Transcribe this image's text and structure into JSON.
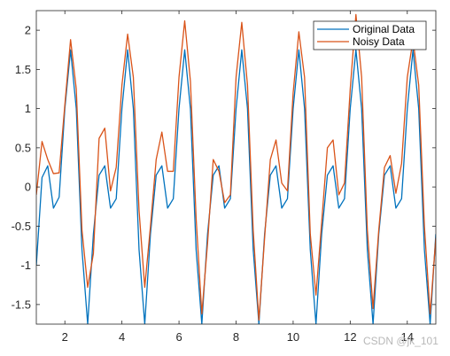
{
  "chart_data": {
    "type": "line",
    "title": "",
    "xlabel": "",
    "ylabel": "",
    "xlim": [
      1,
      15
    ],
    "ylim": [
      -1.75,
      2.25
    ],
    "xticks": [
      2,
      4,
      6,
      8,
      10,
      12,
      14
    ],
    "yticks": [
      -1.5,
      -1,
      -0.5,
      0,
      0.5,
      1,
      1.5,
      2
    ],
    "ytick_labels": [
      "-1.5",
      "-1",
      "-0.5",
      "0",
      "0.5",
      "1",
      "1.5",
      "2"
    ],
    "grid": false,
    "legend_position": "top-right",
    "series": [
      {
        "name": "Original Data",
        "color": "#0072BD",
        "x": [
          1,
          1.2,
          1.4,
          1.6,
          1.8,
          2,
          2.2,
          2.4,
          2.6,
          2.8,
          3,
          3.2,
          3.4,
          3.6,
          3.8,
          4,
          4.2,
          4.4,
          4.6,
          4.8,
          5,
          5.2,
          5.4,
          5.6,
          5.8,
          6,
          6.2,
          6.4,
          6.6,
          6.8,
          7,
          7.2,
          7.4,
          7.6,
          7.8,
          8,
          8.2,
          8.4,
          8.6,
          8.8,
          9,
          9.2,
          9.4,
          9.6,
          9.8,
          10,
          10.2,
          10.4,
          10.6,
          10.8,
          11,
          11.2,
          11.4,
          11.6,
          11.8,
          12,
          12.2,
          12.4,
          12.6,
          12.8,
          13,
          13.2,
          13.4,
          13.6,
          13.8,
          14,
          14.2,
          14.4,
          14.6,
          14.8,
          15
        ],
        "values": [
          -1.0,
          0.12,
          0.27,
          -0.27,
          -0.13,
          1.0,
          1.75,
          1.0,
          -0.8,
          -1.75,
          -0.6,
          0.15,
          0.27,
          -0.27,
          -0.15,
          1.0,
          1.75,
          1.0,
          -0.8,
          -1.75,
          -0.6,
          0.15,
          0.27,
          -0.27,
          -0.15,
          1.0,
          1.75,
          1.0,
          -0.8,
          -1.75,
          -0.6,
          0.15,
          0.27,
          -0.27,
          -0.15,
          1.0,
          1.75,
          1.0,
          -0.8,
          -1.75,
          -0.6,
          0.15,
          0.27,
          -0.27,
          -0.15,
          1.0,
          1.75,
          1.0,
          -0.8,
          -1.75,
          -0.6,
          0.15,
          0.27,
          -0.27,
          -0.15,
          1.0,
          1.75,
          1.0,
          -0.8,
          -1.75,
          -0.6,
          0.15,
          0.27,
          -0.27,
          -0.15,
          1.0,
          1.75,
          1.0,
          -0.8,
          -1.75,
          -0.6
        ]
      },
      {
        "name": "Noisy Data",
        "color": "#D95319",
        "x": [
          1,
          1.2,
          1.4,
          1.6,
          1.8,
          2,
          2.2,
          2.4,
          2.6,
          2.8,
          3,
          3.2,
          3.4,
          3.6,
          3.8,
          4,
          4.2,
          4.4,
          4.6,
          4.8,
          5,
          5.2,
          5.4,
          5.6,
          5.8,
          6,
          6.2,
          6.4,
          6.6,
          6.8,
          7,
          7.2,
          7.4,
          7.6,
          7.8,
          8,
          8.2,
          8.4,
          8.6,
          8.8,
          9,
          9.2,
          9.4,
          9.6,
          9.8,
          10,
          10.2,
          10.4,
          10.6,
          10.8,
          11,
          11.2,
          11.4,
          11.6,
          11.8,
          12,
          12.2,
          12.4,
          12.6,
          12.8,
          13,
          13.2,
          13.4,
          13.6,
          13.8,
          14,
          14.2,
          14.4,
          14.6,
          14.8,
          15
        ],
        "values": [
          -0.1,
          0.58,
          0.35,
          0.17,
          0.18,
          1.05,
          1.88,
          1.25,
          -0.55,
          -1.28,
          -0.85,
          0.62,
          0.75,
          -0.05,
          0.25,
          1.3,
          1.95,
          1.4,
          -0.3,
          -1.28,
          -0.5,
          0.35,
          0.7,
          0.2,
          0.2,
          1.4,
          2.12,
          1.35,
          -0.4,
          -1.62,
          -0.72,
          0.35,
          0.2,
          -0.2,
          -0.1,
          1.4,
          2.1,
          1.3,
          -0.55,
          -1.7,
          -0.65,
          0.35,
          0.6,
          0.05,
          -0.05,
          1.2,
          1.98,
          1.4,
          -0.6,
          -1.38,
          -0.45,
          0.5,
          0.6,
          -0.1,
          0.05,
          1.25,
          2.2,
          1.4,
          -0.55,
          -1.55,
          -0.55,
          0.25,
          0.4,
          -0.08,
          0.3,
          1.4,
          1.88,
          1.3,
          -0.5,
          -1.62,
          -0.65
        ]
      }
    ]
  },
  "watermark": "CSDN @jk_101"
}
